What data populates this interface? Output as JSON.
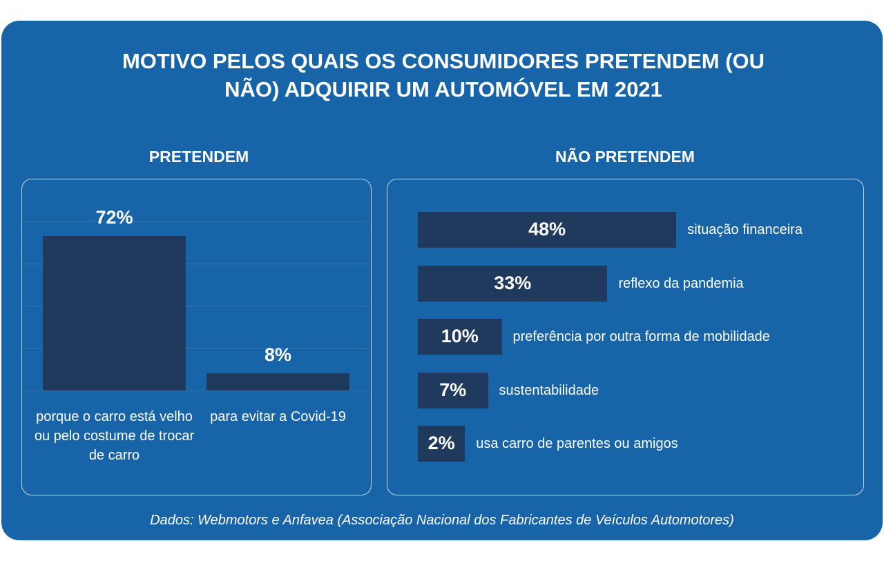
{
  "title": "MOTIVO PELOS QUAIS OS CONSUMIDORES PRETENDEM (OU NÃO) ADQUIRIR UM AUTOMÓVEL EM 2021",
  "source": "Dados: Webmotors e Anfavea (Associação Nacional dos Fabricantes de Veículos Automotores)",
  "chart_data": [
    {
      "type": "bar",
      "title": "PRETENDEM",
      "color": "#1f3a5c",
      "categories": [
        "porque o carro está velho ou pelo costume de trocar de carro",
        "para evitar a Covid-19"
      ],
      "values": [
        72,
        8
      ],
      "value_labels": [
        "72%",
        "8%"
      ]
    },
    {
      "type": "hbar",
      "title": "NÃO PRETENDEM",
      "color": "#1f3a5c",
      "categories": [
        "situação financeira",
        "reflexo da pandemia",
        "preferência por outra forma de mobilidade",
        "sustentabilidade",
        "usa carro de parentes ou amigos"
      ],
      "values": [
        48,
        33,
        10,
        7,
        2
      ],
      "value_labels": [
        "48%",
        "33%",
        "10%",
        "7%",
        "2%"
      ]
    }
  ]
}
